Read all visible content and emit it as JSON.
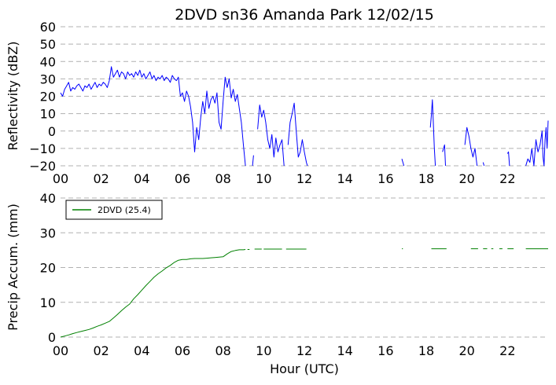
{
  "chart_data": [
    {
      "type": "line",
      "title": "2DVD sn36 Amanda Park 12/02/15",
      "xlabel": "",
      "ylabel": "Reflectivity (dBZ)",
      "xlim": [
        0,
        24
      ],
      "ylim": [
        -20,
        60
      ],
      "xtick_labels": [
        "00",
        "02",
        "04",
        "06",
        "08",
        "10",
        "12",
        "14",
        "16",
        "18",
        "20",
        "22"
      ],
      "ytick_labels": [
        "60",
        "50",
        "40",
        "30",
        "20",
        "10",
        "0",
        "−10",
        "−20"
      ],
      "grid": "horizontal dashed",
      "series": [
        {
          "color": "#0000ff",
          "segments": [
            [
              [
                0.0,
                22
              ],
              [
                0.1,
                20
              ],
              [
                0.2,
                24
              ],
              [
                0.3,
                26
              ],
              [
                0.4,
                28
              ],
              [
                0.5,
                23
              ],
              [
                0.6,
                25
              ],
              [
                0.7,
                24
              ],
              [
                0.8,
                26
              ],
              [
                0.9,
                27
              ],
              [
                1.0,
                25
              ],
              [
                1.1,
                23
              ],
              [
                1.2,
                26
              ],
              [
                1.3,
                25
              ],
              [
                1.4,
                27
              ],
              [
                1.5,
                24
              ],
              [
                1.6,
                26
              ],
              [
                1.7,
                28
              ],
              [
                1.8,
                25
              ],
              [
                1.9,
                27
              ],
              [
                2.0,
                26
              ],
              [
                2.1,
                28
              ],
              [
                2.2,
                27
              ],
              [
                2.3,
                25
              ],
              [
                2.4,
                29
              ],
              [
                2.5,
                37
              ],
              [
                2.6,
                31
              ],
              [
                2.7,
                33
              ],
              [
                2.8,
                35
              ],
              [
                2.9,
                31
              ],
              [
                3.0,
                34
              ],
              [
                3.1,
                33
              ],
              [
                3.2,
                30
              ],
              [
                3.3,
                34
              ],
              [
                3.4,
                32
              ],
              [
                3.5,
                33
              ],
              [
                3.6,
                31
              ],
              [
                3.7,
                34
              ],
              [
                3.8,
                32
              ],
              [
                3.9,
                35
              ],
              [
                4.0,
                31
              ],
              [
                4.1,
                33
              ],
              [
                4.2,
                30
              ],
              [
                4.3,
                32
              ],
              [
                4.4,
                34
              ],
              [
                4.5,
                30
              ],
              [
                4.6,
                32
              ],
              [
                4.7,
                29
              ],
              [
                4.8,
                31
              ],
              [
                4.9,
                30
              ],
              [
                5.0,
                32
              ],
              [
                5.1,
                29
              ],
              [
                5.2,
                31
              ],
              [
                5.3,
                30
              ],
              [
                5.4,
                28
              ],
              [
                5.5,
                32
              ],
              [
                5.6,
                30
              ],
              [
                5.7,
                29
              ],
              [
                5.8,
                31
              ],
              [
                5.9,
                20
              ],
              [
                6.0,
                22
              ],
              [
                6.1,
                17
              ],
              [
                6.2,
                23
              ],
              [
                6.3,
                20
              ],
              [
                6.4,
                14
              ],
              [
                6.5,
                5
              ],
              [
                6.6,
                -12
              ],
              [
                6.7,
                2
              ],
              [
                6.8,
                -5
              ],
              [
                6.9,
                8
              ],
              [
                7.0,
                17
              ],
              [
                7.1,
                10
              ],
              [
                7.2,
                23
              ],
              [
                7.3,
                13
              ],
              [
                7.4,
                18
              ],
              [
                7.5,
                20
              ],
              [
                7.6,
                16
              ],
              [
                7.7,
                22
              ],
              [
                7.8,
                5
              ],
              [
                7.9,
                1
              ],
              [
                8.0,
                17
              ],
              [
                8.1,
                31
              ],
              [
                8.2,
                25
              ],
              [
                8.3,
                30
              ],
              [
                8.4,
                19
              ],
              [
                8.5,
                24
              ],
              [
                8.6,
                17
              ],
              [
                8.7,
                21
              ],
              [
                8.8,
                13
              ],
              [
                8.9,
                5
              ],
              [
                9.0,
                -8
              ],
              [
                9.1,
                -20
              ]
            ],
            [
              [
                9.45,
                -20
              ],
              [
                9.5,
                -14
              ]
            ],
            [
              [
                9.7,
                1
              ],
              [
                9.8,
                15
              ],
              [
                9.9,
                8
              ],
              [
                10.0,
                12
              ],
              [
                10.1,
                5
              ],
              [
                10.2,
                -5
              ],
              [
                10.3,
                -10
              ],
              [
                10.4,
                -2
              ],
              [
                10.5,
                -15
              ],
              [
                10.6,
                -4
              ],
              [
                10.7,
                -12
              ],
              [
                10.8,
                -8
              ],
              [
                10.9,
                -5
              ],
              [
                11.0,
                -20
              ]
            ],
            [
              [
                11.2,
                -8
              ],
              [
                11.3,
                5
              ],
              [
                11.4,
                10
              ],
              [
                11.5,
                16
              ],
              [
                11.6,
                0
              ],
              [
                11.7,
                -15
              ],
              [
                11.8,
                -12
              ],
              [
                11.9,
                -5
              ],
              [
                12.0,
                -12
              ],
              [
                12.1,
                -18
              ],
              [
                12.15,
                -20
              ]
            ],
            [
              [
                16.8,
                -16
              ],
              [
                16.85,
                -18
              ],
              [
                16.9,
                -20
              ]
            ],
            [
              [
                18.2,
                2
              ],
              [
                18.25,
                9
              ],
              [
                18.3,
                18
              ],
              [
                18.35,
                5
              ],
              [
                18.4,
                -10
              ],
              [
                18.45,
                -20
              ]
            ],
            [
              [
                18.8,
                -12
              ],
              [
                18.9,
                -8
              ],
              [
                18.95,
                -20
              ]
            ],
            [
              [
                19.9,
                -8
              ],
              [
                20.0,
                2
              ],
              [
                20.1,
                -3
              ],
              [
                20.2,
                -10
              ],
              [
                20.3,
                -15
              ],
              [
                20.4,
                -10
              ],
              [
                20.5,
                -20
              ]
            ],
            [
              [
                20.8,
                -18
              ],
              [
                20.85,
                -20
              ]
            ],
            [
              [
                22.0,
                -13
              ],
              [
                22.05,
                -12
              ],
              [
                22.1,
                -20
              ]
            ],
            [
              [
                22.9,
                -20
              ],
              [
                23.0,
                -16
              ],
              [
                23.1,
                -18
              ],
              [
                23.2,
                -10
              ],
              [
                23.3,
                -20
              ],
              [
                23.4,
                -5
              ],
              [
                23.5,
                -12
              ],
              [
                23.6,
                -8
              ],
              [
                23.7,
                0
              ],
              [
                23.75,
                -15
              ],
              [
                23.8,
                -20
              ],
              [
                23.85,
                -5
              ],
              [
                23.9,
                2
              ],
              [
                23.95,
                -10
              ],
              [
                24.0,
                6
              ]
            ]
          ]
        }
      ]
    },
    {
      "type": "line",
      "title": "",
      "xlabel": "Hour (UTC)",
      "ylabel": "Precip Accum. (mm)",
      "xlim": [
        0,
        24
      ],
      "ylim": [
        0,
        40
      ],
      "xtick_labels": [
        "00",
        "02",
        "04",
        "06",
        "08",
        "10",
        "12",
        "14",
        "16",
        "18",
        "20",
        "22"
      ],
      "ytick_labels": [
        "40",
        "30",
        "20",
        "10",
        "0"
      ],
      "grid": "horizontal dashed",
      "legend": "top-left",
      "series": [
        {
          "name": "2DVD (25.4)",
          "color": "#008000",
          "segments": [
            [
              [
                0.0,
                0.0
              ],
              [
                0.2,
                0.3
              ],
              [
                0.4,
                0.6
              ],
              [
                0.6,
                1.0
              ],
              [
                0.8,
                1.3
              ],
              [
                1.0,
                1.6
              ],
              [
                1.2,
                1.9
              ],
              [
                1.4,
                2.2
              ],
              [
                1.6,
                2.6
              ],
              [
                1.8,
                3.1
              ],
              [
                2.0,
                3.5
              ],
              [
                2.2,
                4.0
              ],
              [
                2.4,
                4.5
              ],
              [
                2.6,
                5.5
              ],
              [
                2.8,
                6.5
              ],
              [
                3.0,
                7.6
              ],
              [
                3.2,
                8.6
              ],
              [
                3.4,
                9.5
              ],
              [
                3.6,
                11.0
              ],
              [
                3.8,
                12.2
              ],
              [
                4.0,
                13.5
              ],
              [
                4.2,
                14.8
              ],
              [
                4.4,
                16.0
              ],
              [
                4.6,
                17.2
              ],
              [
                4.8,
                18.2
              ],
              [
                5.0,
                19.0
              ],
              [
                5.2,
                19.9
              ],
              [
                5.4,
                20.6
              ],
              [
                5.6,
                21.5
              ],
              [
                5.8,
                22.1
              ],
              [
                6.0,
                22.3
              ],
              [
                6.2,
                22.3
              ],
              [
                6.4,
                22.5
              ],
              [
                6.6,
                22.6
              ],
              [
                6.8,
                22.6
              ],
              [
                7.0,
                22.6
              ],
              [
                7.2,
                22.7
              ],
              [
                7.4,
                22.8
              ],
              [
                7.6,
                22.9
              ],
              [
                7.8,
                23.0
              ],
              [
                8.0,
                23.1
              ],
              [
                8.2,
                23.9
              ],
              [
                8.4,
                24.6
              ],
              [
                8.6,
                24.9
              ],
              [
                8.8,
                25.1
              ],
              [
                9.0,
                25.1
              ],
              [
                9.1,
                25.2
              ]
            ],
            [
              [
                9.2,
                25.2
              ],
              [
                9.3,
                25.2
              ]
            ],
            [
              [
                9.55,
                25.3
              ],
              [
                9.9,
                25.3
              ]
            ],
            [
              [
                10.0,
                25.3
              ],
              [
                10.9,
                25.3
              ]
            ],
            [
              [
                11.1,
                25.3
              ],
              [
                12.1,
                25.3
              ]
            ],
            [
              [
                16.8,
                25.4
              ],
              [
                16.85,
                25.4
              ]
            ],
            [
              [
                18.25,
                25.4
              ],
              [
                19.0,
                25.4
              ]
            ],
            [
              [
                20.2,
                25.4
              ],
              [
                20.55,
                25.4
              ]
            ],
            [
              [
                20.8,
                25.4
              ],
              [
                21.0,
                25.4
              ]
            ],
            [
              [
                21.2,
                25.4
              ],
              [
                21.3,
                25.4
              ]
            ],
            [
              [
                21.6,
                25.4
              ],
              [
                21.75,
                25.4
              ]
            ],
            [
              [
                22.0,
                25.4
              ],
              [
                22.3,
                25.4
              ]
            ],
            [
              [
                22.9,
                25.4
              ],
              [
                24.0,
                25.4
              ]
            ]
          ]
        }
      ]
    }
  ]
}
